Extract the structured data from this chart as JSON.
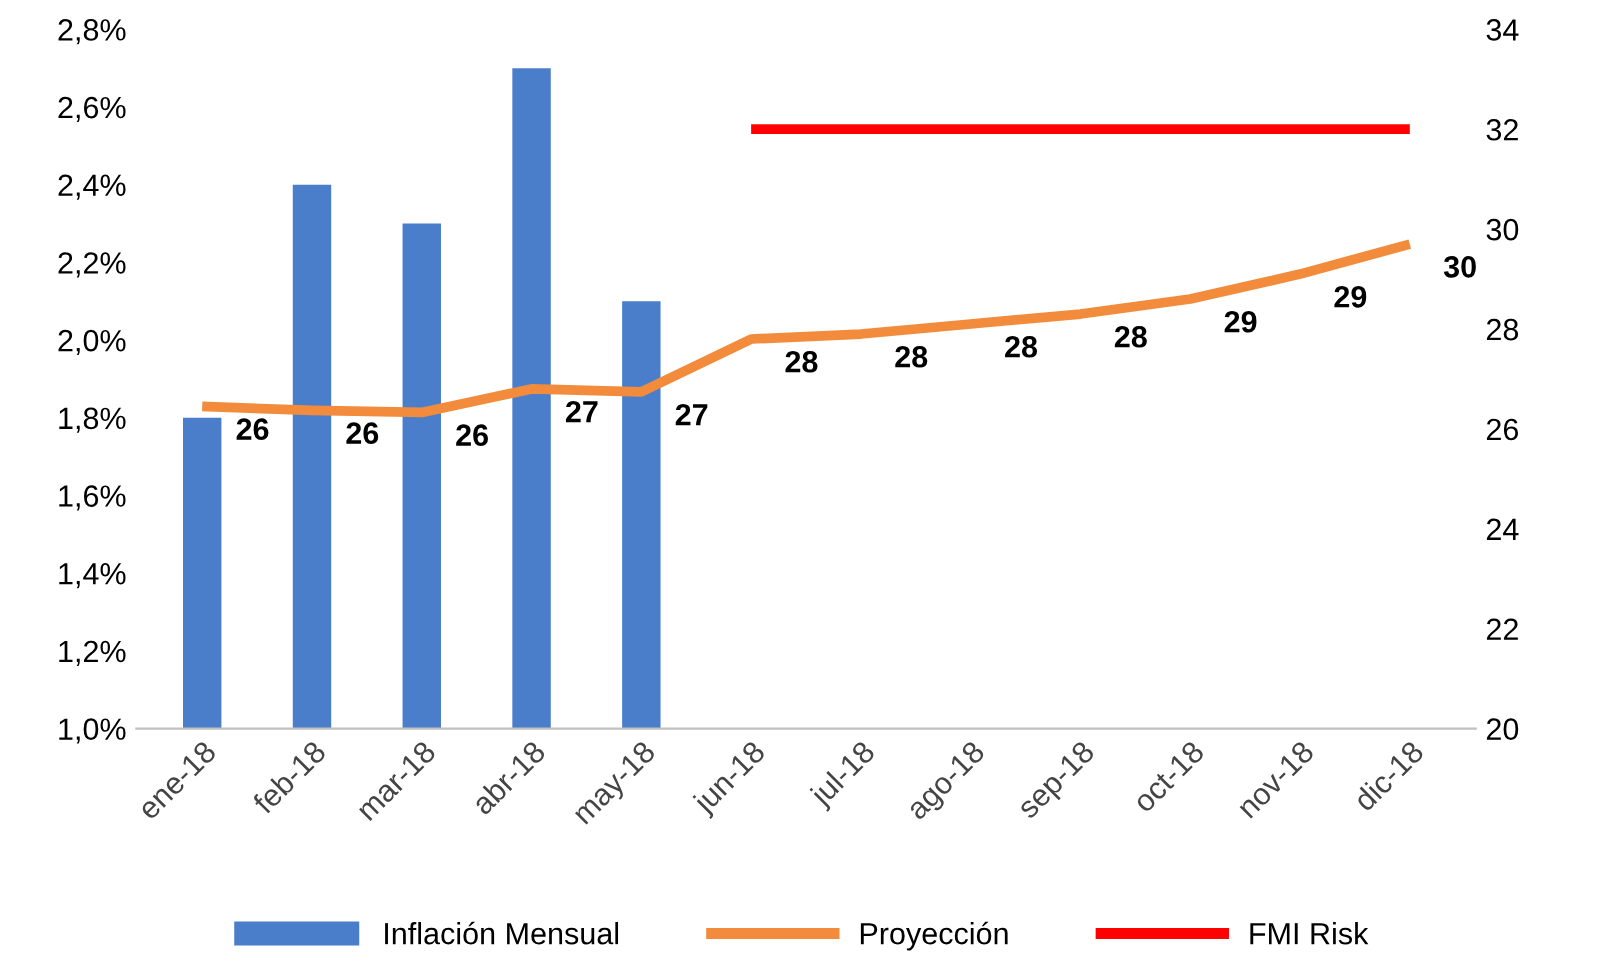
{
  "chart_data": {
    "type": "bar",
    "categories": [
      "ene-18",
      "feb-18",
      "mar-18",
      "abr-18",
      "may-18",
      "jun-18",
      "jul-18",
      "ago-18",
      "sep-18",
      "oct-18",
      "nov-18",
      "dic-18"
    ],
    "series": [
      {
        "name": "Inflación Mensual",
        "color": "#4a7ecb",
        "values": [
          1.8,
          2.4,
          2.3,
          2.7,
          2.1,
          null,
          null,
          null,
          null,
          null,
          null,
          null
        ]
      },
      {
        "name": "Proyección",
        "type": "line",
        "axis": "y2",
        "color": "#f28c3c",
        "values": [
          26.45,
          26.37,
          26.33,
          26.8,
          26.74,
          27.8,
          27.9,
          28.1,
          28.3,
          28.6,
          29.1,
          29.7
        ],
        "value_labels": [
          "26",
          "26",
          "26",
          "27",
          "27",
          "28",
          "28",
          "28",
          "28",
          "29",
          "29",
          "30"
        ]
      },
      {
        "name": "FMI Risk",
        "type": "line",
        "axis": "y2",
        "color": "#ff0000",
        "values": [
          null,
          null,
          null,
          null,
          null,
          32,
          32,
          32,
          32,
          32,
          32,
          32
        ]
      }
    ],
    "ylim": [
      1.0,
      2.8
    ],
    "yticks": [
      {
        "value": 1.0,
        "label": "1,0%"
      },
      {
        "value": 1.2,
        "label": "1,2%"
      },
      {
        "value": 1.4,
        "label": "1,4%"
      },
      {
        "value": 1.6,
        "label": "1,6%"
      },
      {
        "value": 1.8,
        "label": "1,8%"
      },
      {
        "value": 2.0,
        "label": "2,0%"
      },
      {
        "value": 2.2,
        "label": "2,2%"
      },
      {
        "value": 2.4,
        "label": "2,4%"
      },
      {
        "value": 2.6,
        "label": "2,6%"
      },
      {
        "value": 2.8,
        "label": "2,8%"
      }
    ],
    "y2lim": [
      20,
      34
    ],
    "y2ticks": [
      20,
      22,
      24,
      26,
      28,
      30,
      32,
      34
    ],
    "legend": "bottom",
    "grid": false,
    "marker": "none"
  }
}
